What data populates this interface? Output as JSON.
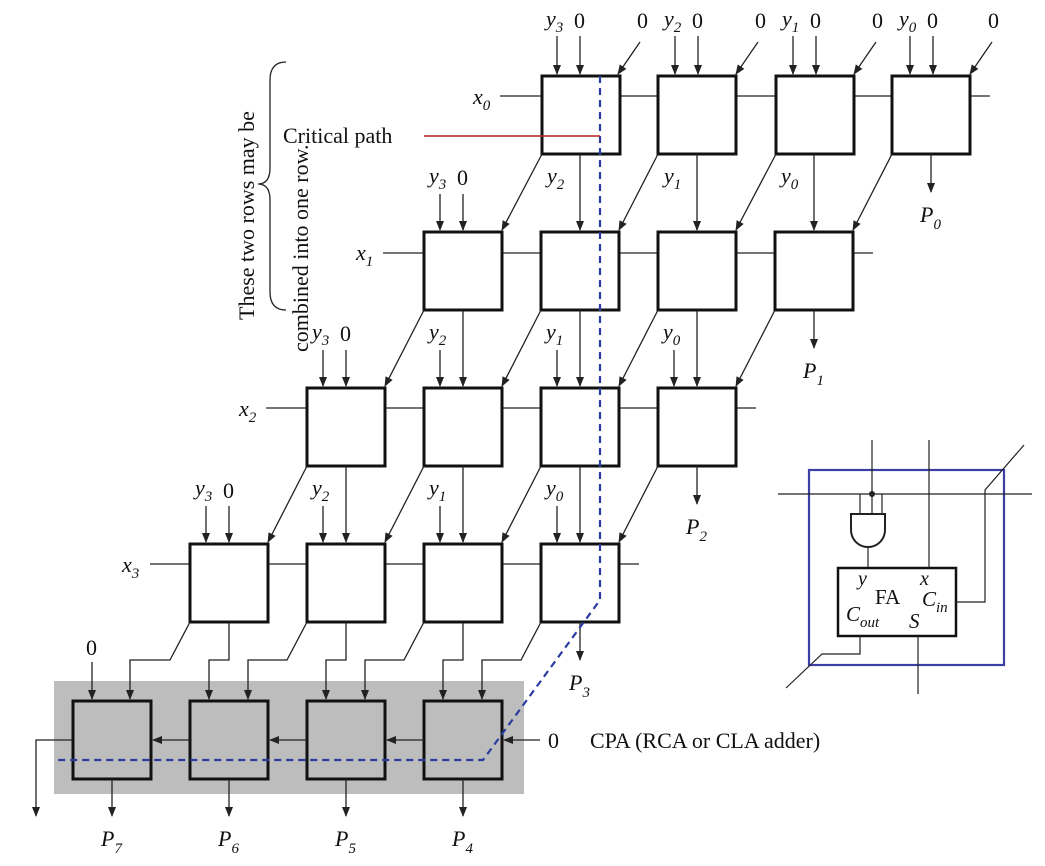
{
  "labels": {
    "critical_path": "Critical path",
    "combine_note_line1": "These two rows may be",
    "combine_note_line2": "combined into one row.",
    "cpa": "CPA (RCA or CLA adder)",
    "zero": "0"
  },
  "row_inputs": [
    "x",
    "x",
    "x",
    "x"
  ],
  "row_subs": [
    "0",
    "1",
    "2",
    "3"
  ],
  "y_inputs": [
    {
      "name": "y",
      "sub": "3"
    },
    {
      "name": "y",
      "sub": "2"
    },
    {
      "name": "y",
      "sub": "1"
    },
    {
      "name": "y",
      "sub": "0"
    }
  ],
  "products": [
    {
      "name": "P",
      "sub": "0"
    },
    {
      "name": "P",
      "sub": "1"
    },
    {
      "name": "P",
      "sub": "2"
    },
    {
      "name": "P",
      "sub": "3"
    },
    {
      "name": "P",
      "sub": "4"
    },
    {
      "name": "P",
      "sub": "5"
    },
    {
      "name": "P",
      "sub": "6"
    },
    {
      "name": "P",
      "sub": "7"
    }
  ],
  "inset": {
    "title": "FA",
    "port_y": "y",
    "port_x": "x",
    "cout": "C",
    "cout_sub": "out",
    "cin": "C",
    "cin_sub": "in",
    "sum": "S"
  },
  "colors": {
    "cell_border": "#111111",
    "cpa_background": "#bdbdbd",
    "critical_path": "#2b3ba0",
    "critical_label_line": "#b22222",
    "inset_border": "#3c3fa6"
  }
}
